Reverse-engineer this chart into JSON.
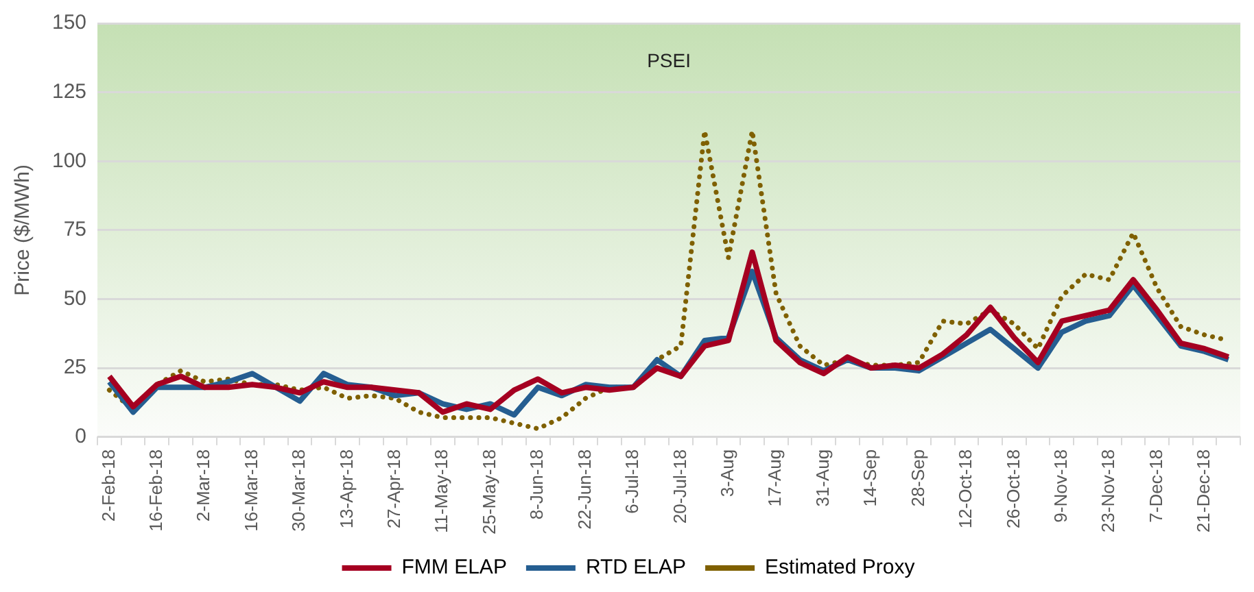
{
  "chart_data": {
    "type": "line",
    "title": "PSEI",
    "ylabel": "Price ($/MWh)",
    "categories": [
      "2-Feb-18",
      null,
      "16-Feb-18",
      null,
      "2-Mar-18",
      null,
      "16-Mar-18",
      null,
      "30-Mar-18",
      null,
      "13-Apr-18",
      null,
      "27-Apr-18",
      null,
      "11-May-18",
      null,
      "25-May-18",
      null,
      "8-Jun-18",
      null,
      "22-Jun-18",
      null,
      "6-Jul-18",
      null,
      "20-Jul-18",
      null,
      "3-Aug",
      null,
      "17-Aug",
      null,
      "31-Aug",
      null,
      "14-Sep",
      null,
      "28-Sep",
      null,
      "12-Oct-18",
      null,
      "26-Oct-18",
      null,
      "9-Nov-18",
      null,
      "23-Nov-18",
      null,
      "7-Dec-18",
      null,
      "21-Dec-18",
      null
    ],
    "series": [
      {
        "name": "FMM ELAP",
        "color": "#a50021",
        "line_style": "solid",
        "values": [
          22,
          11,
          19,
          22,
          18,
          18,
          19,
          18,
          16,
          20,
          18,
          18,
          17,
          16,
          9,
          12,
          10,
          17,
          21,
          16,
          18,
          17,
          18,
          25,
          22,
          33,
          35,
          67,
          35,
          27,
          23,
          29,
          25,
          26,
          25,
          30,
          37,
          47,
          36,
          27,
          42,
          44,
          46,
          57,
          46,
          34,
          32,
          29
        ]
      },
      {
        "name": "RTD ELAP",
        "color": "#255e91",
        "line_style": "solid",
        "values": [
          20,
          9,
          18,
          18,
          18,
          20,
          23,
          18,
          13,
          23,
          19,
          18,
          15,
          16,
          12,
          10,
          12,
          8,
          18,
          15,
          19,
          18,
          18,
          28,
          22,
          35,
          36,
          60,
          36,
          28,
          24,
          28,
          25,
          25,
          24,
          29,
          34,
          39,
          32,
          25,
          38,
          42,
          44,
          55,
          44,
          33,
          31,
          28
        ]
      },
      {
        "name": "Estimated Proxy",
        "color": "#7f6000",
        "line_style": "dotted",
        "values": [
          17,
          10,
          19,
          24,
          20,
          21,
          19,
          19,
          17,
          18,
          14,
          15,
          14,
          9,
          7,
          7,
          7,
          5,
          3,
          7,
          14,
          18,
          18,
          28,
          33,
          111,
          65,
          111,
          52,
          33,
          26,
          28,
          26,
          26,
          27,
          42,
          41,
          46,
          41,
          32,
          51,
          59,
          57,
          74,
          54,
          40,
          37,
          35
        ]
      }
    ],
    "ylim": [
      0,
      150
    ],
    "yticks": [
      0,
      25,
      50,
      75,
      100,
      125,
      150
    ],
    "grid": "y",
    "legend": "bottom",
    "marker": "none"
  }
}
